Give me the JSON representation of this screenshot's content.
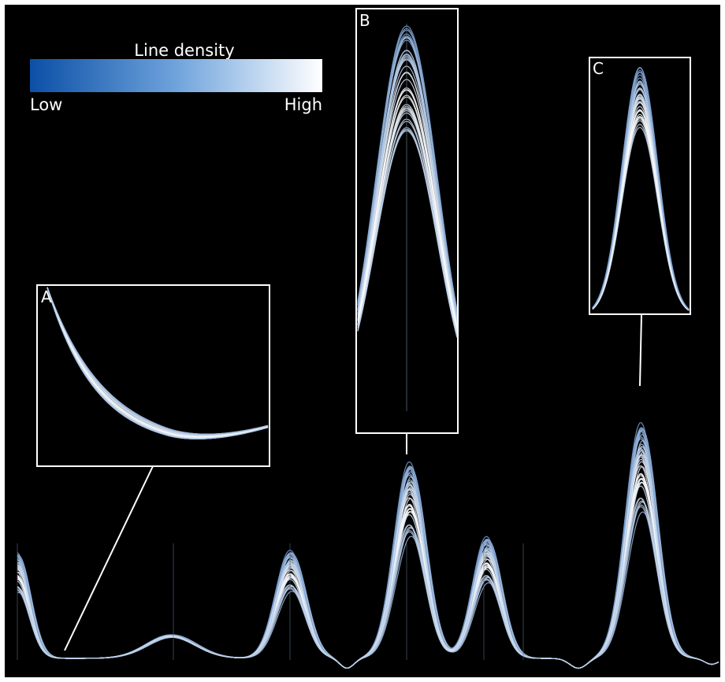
{
  "legend": {
    "title": "Line density",
    "low_label": "Low",
    "high_label": "High",
    "gradient_start": "#0b4fa6",
    "gradient_end": "#ffffff"
  },
  "insets": [
    {
      "id": "A",
      "label": "A"
    },
    {
      "id": "B",
      "label": "B"
    },
    {
      "id": "C",
      "label": "C"
    }
  ],
  "colors": {
    "background": "#000000",
    "line_low": "#0b4fa6",
    "line_high": "#ffffff",
    "frame": "#ffffff"
  },
  "chart_data": {
    "type": "line",
    "description_series": "ensemble of overlaid curves colored by line density",
    "peaks": [
      {
        "name": "peak-0",
        "x": 0.0,
        "height": 0.6
      },
      {
        "name": "peak-1",
        "x": 0.22,
        "height": 0.12
      },
      {
        "name": "peak-2",
        "x": 0.39,
        "height": 0.55
      },
      {
        "name": "peak-3",
        "x": 0.56,
        "height": 1.0
      },
      {
        "name": "peak-4",
        "x": 0.67,
        "height": 0.62
      },
      {
        "name": "peak-5",
        "x": 0.89,
        "height": 1.2
      }
    ],
    "grid": false,
    "legend_position": "top-left"
  }
}
